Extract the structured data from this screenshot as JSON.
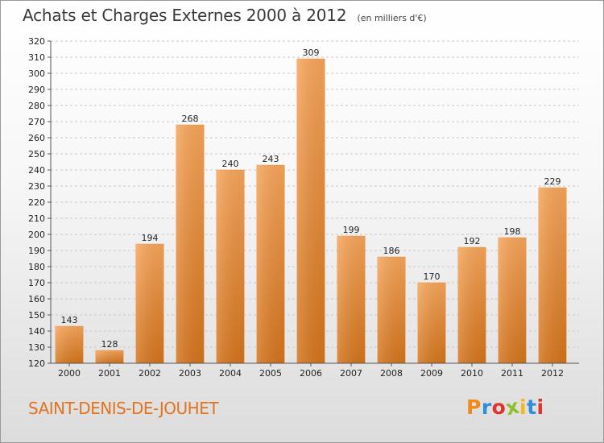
{
  "header": {
    "title": "Achats et Charges Externes 2000 à 2012",
    "subtitle": "(en milliers d'€)"
  },
  "footer": {
    "commune": "SAINT-DENIS-DE-JOUHET",
    "logo_text": "Proxiti",
    "logo_colors": [
      "#f08a1d",
      "#2f8ed8",
      "#e2322b",
      "#8fbf2a",
      "#f3b81a",
      "#2f8ed8",
      "#e2322b"
    ]
  },
  "chart_data": {
    "type": "bar",
    "categories": [
      "2000",
      "2001",
      "2002",
      "2003",
      "2004",
      "2005",
      "2006",
      "2007",
      "2008",
      "2009",
      "2010",
      "2011",
      "2012"
    ],
    "values": [
      143,
      128,
      194,
      268,
      240,
      243,
      309,
      199,
      186,
      170,
      192,
      198,
      229
    ],
    "ylim": [
      120,
      320
    ],
    "ytick_step": 10,
    "grid": true,
    "bar_color_top": "#f7a55a",
    "bar_color_bottom": "#d4741c"
  }
}
